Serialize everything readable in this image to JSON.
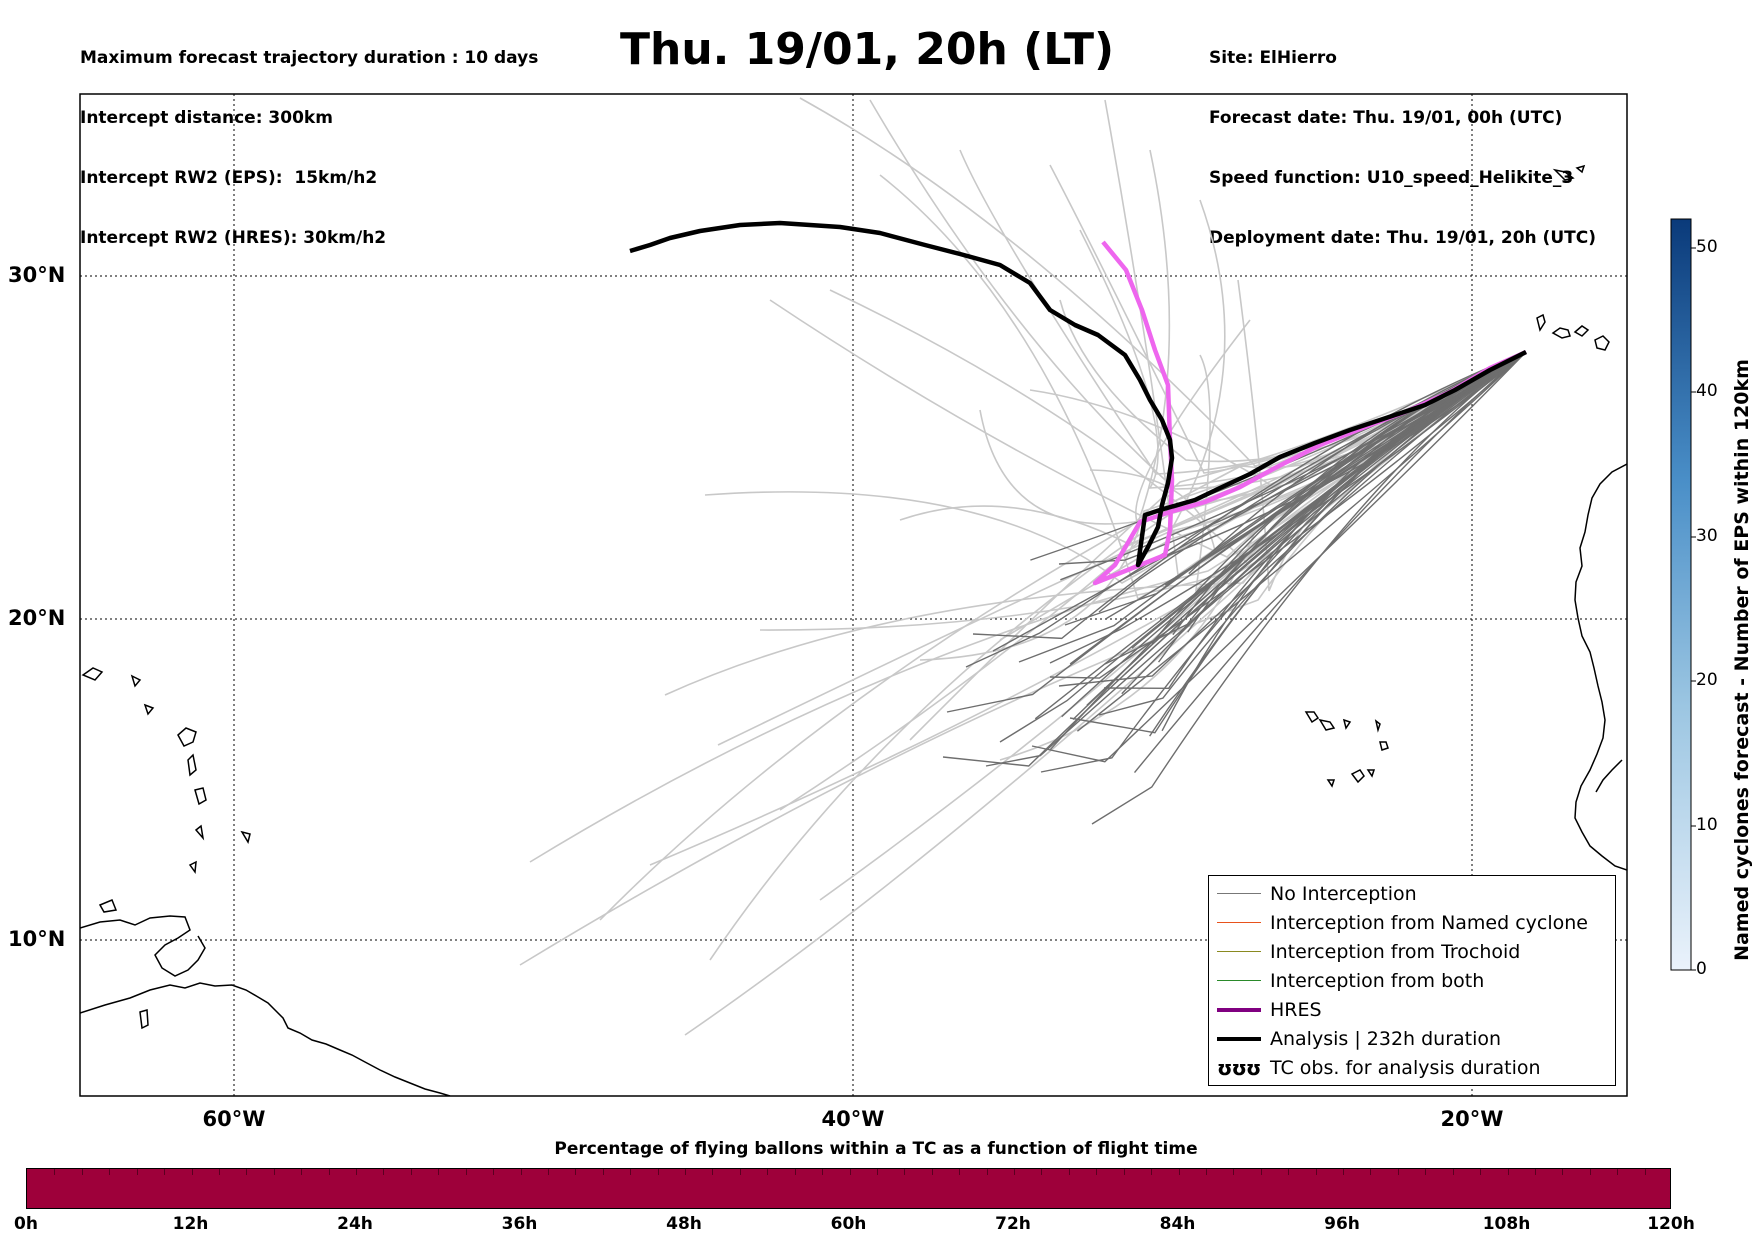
{
  "header": {
    "left_lines": [
      "Maximum forecast trajectory duration : 10 days",
      "Intercept distance: 300km",
      "Intercept RW2 (EPS):  15km/h2",
      "Intercept RW2 (HRES): 30km/h2"
    ],
    "title": "Thu. 19/01, 20h (LT)",
    "right_lines": [
      "Site: ElHierro",
      "Forecast date: Thu. 19/01, 00h (UTC)",
      "Speed function: U10_speed_Helikite_3",
      "Deployment date: Thu. 19/01, 20h (UTC)"
    ]
  },
  "map": {
    "lat_labels": [
      "30°N",
      "20°N",
      "10°N"
    ],
    "lon_labels": [
      "60°W",
      "40°W",
      "20°W"
    ],
    "grid_lats": [
      30,
      20,
      10
    ],
    "grid_lons": [
      -60,
      -40,
      -20
    ],
    "extent": {
      "lon_min": -65,
      "lon_max": -15,
      "lat_min": 5.4,
      "lat_max": 34.6
    },
    "colors": {
      "eps_light": "#c8c8c8",
      "eps_dark": "#6e6e6e",
      "hres": "#ee66ee",
      "analysis": "#000000"
    }
  },
  "legend": {
    "items": [
      {
        "label": "No Interception",
        "color": "#777777",
        "style": "thin"
      },
      {
        "label": "Interception from Named cyclone",
        "color": "#e8521c",
        "style": "thin"
      },
      {
        "label": "Interception from Trochoid",
        "color": "#8a8a20",
        "style": "thin"
      },
      {
        "label": "Interception from both",
        "color": "#2a8a2a",
        "style": "thin"
      },
      {
        "label": "HRES",
        "color": "#800080",
        "style": "thick"
      },
      {
        "label": "Analysis | 232h duration",
        "color": "#000000",
        "style": "thick"
      },
      {
        "label": "TC obs. for analysis duration",
        "color": "#000000",
        "style": "symbol",
        "symbol_text": "ʊʊʊ"
      }
    ]
  },
  "colorbar": {
    "label": "Named cyclones forecast - Number of EPS within 120km",
    "ticks": [
      "0",
      "10",
      "20",
      "30",
      "40",
      "50"
    ],
    "max": 52,
    "color_low": "#eaf2fb",
    "color_high": "#0a3a7a"
  },
  "bottom_bar": {
    "title": "Percentage of flying ballons within a TC as a function of flight time",
    "ticks": [
      "0h",
      "12h",
      "24h",
      "36h",
      "48h",
      "60h",
      "72h",
      "84h",
      "96h",
      "108h",
      "120h"
    ],
    "color": "#9e003a"
  }
}
